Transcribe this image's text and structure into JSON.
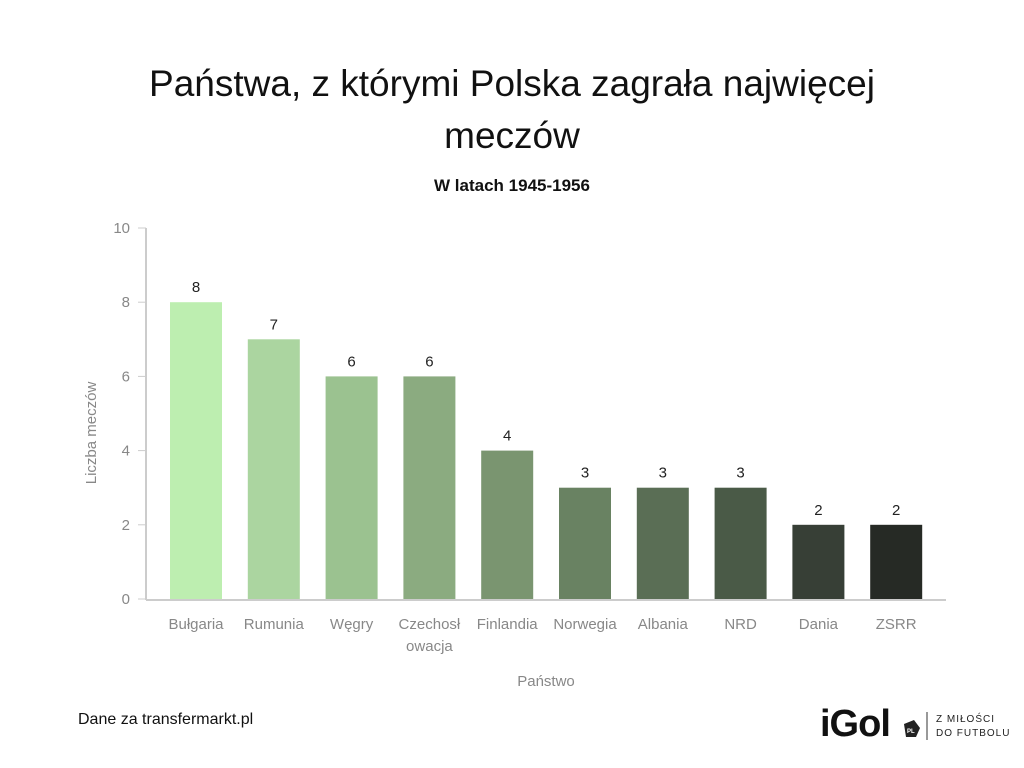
{
  "chart_data": {
    "type": "bar",
    "title": "Państwa, z którymi Polska zagrała najwięcej meczów",
    "subtitle": "W latach 1945-1956",
    "xlabel": "Państwo",
    "ylabel": "Liczba meczów",
    "ylim": [
      0,
      10
    ],
    "yticks": [
      0,
      2,
      4,
      6,
      8,
      10
    ],
    "grid": false,
    "categories": [
      "Bułgaria",
      "Rumunia",
      "Węgry",
      "Czechosłowacja",
      "Finlandia",
      "Norwegia",
      "Albania",
      "NRD",
      "Dania",
      "ZSRR"
    ],
    "category_label_lines": [
      [
        "Bułgaria"
      ],
      [
        "Rumunia"
      ],
      [
        "Węgry"
      ],
      [
        "Czechosł",
        "owacja"
      ],
      [
        "Finlandia"
      ],
      [
        "Norwegia"
      ],
      [
        "Albania"
      ],
      [
        "NRD"
      ],
      [
        "Dania"
      ],
      [
        "ZSRR"
      ]
    ],
    "values": [
      8,
      7,
      6,
      6,
      4,
      3,
      3,
      3,
      2,
      2
    ],
    "colors": [
      "#bdeeb0",
      "#abd5a0",
      "#9bc290",
      "#8bab80",
      "#7a9570",
      "#698262",
      "#5a6e55",
      "#4a5a47",
      "#373f36",
      "#262a25"
    ]
  },
  "footer": {
    "source": "Dane za transfermarkt.pl",
    "logo": {
      "brand": "iGol",
      "badge": "PL",
      "tagline_1": "Z MIŁOŚCI",
      "tagline_2": "DO FUTBOLU"
    }
  }
}
